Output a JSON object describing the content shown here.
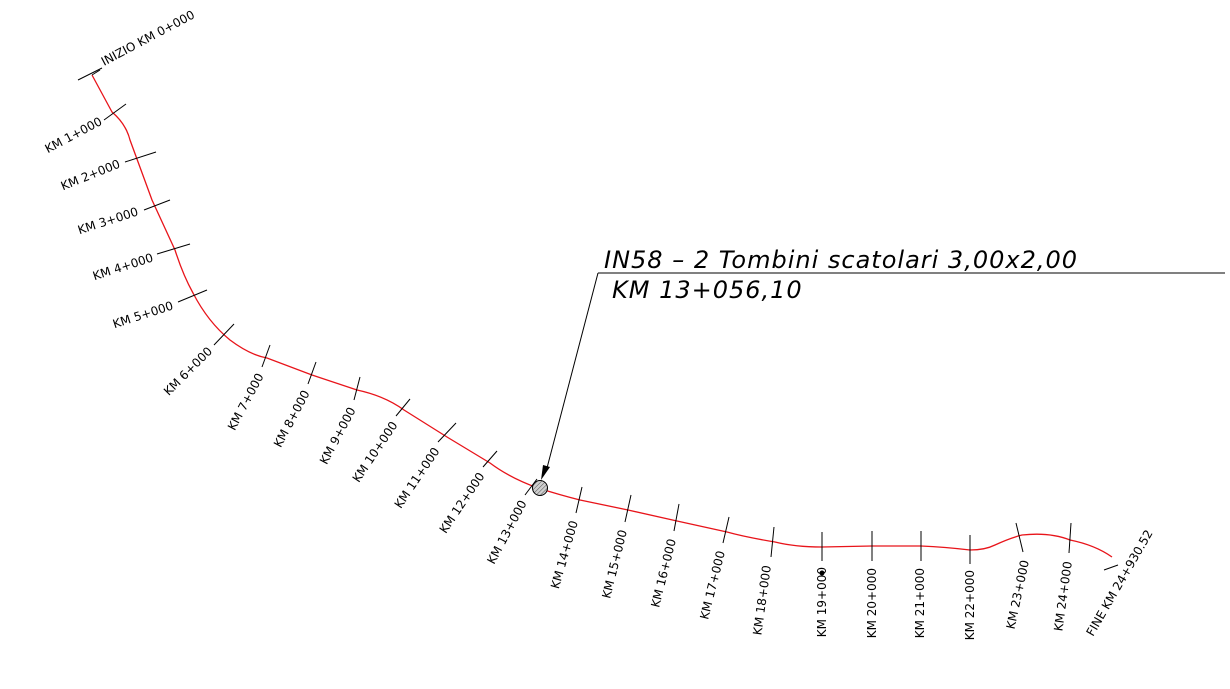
{
  "start_label": "INIZIO KM 0+000",
  "end_label": "FINE KM 24+930.52",
  "km_labels": [
    "KM 1+000",
    "KM 2+000",
    "KM 3+000",
    "KM 4+000",
    "KM 5+000",
    "KM 6+000",
    "KM 7+000",
    "KM 8+000",
    "KM 9+000",
    "KM 10+000",
    "KM 11+000",
    "KM 12+000",
    "KM 13+000",
    "KM 14+000",
    "KM 15+000",
    "KM 16+000",
    "KM 17+000",
    "KM 18+000",
    "KM 19+000",
    "KM 20+000",
    "KM 21+000",
    "KM 22+000",
    "KM 23+000",
    "KM 24+000"
  ],
  "callout": {
    "line1": "IN58 – 2 Tombini scatolari 3,00x2,00",
    "line2": "KM 13+056,10"
  },
  "colors": {
    "alignment": "#e8141a",
    "ink": "#000000",
    "marker_fill": "#9a9a9a"
  }
}
